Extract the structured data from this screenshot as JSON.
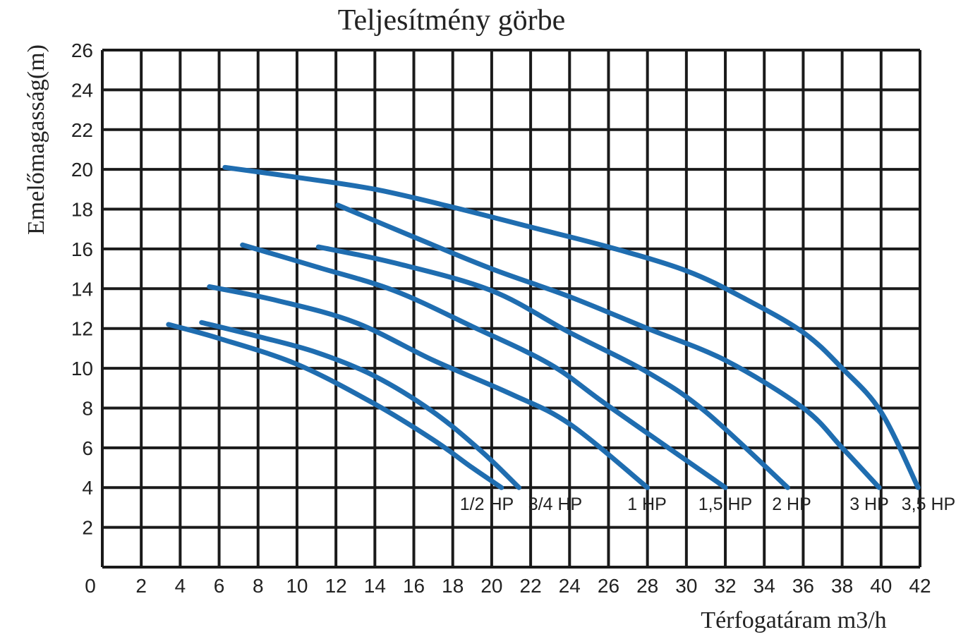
{
  "chart_data": {
    "type": "line",
    "title": "Teljesítmény görbe",
    "xlabel": "Térfogatáram m3/h",
    "ylabel": "Emelőmagasság(m)",
    "xlim": [
      0,
      42
    ],
    "ylim": [
      0,
      26
    ],
    "x_ticks": [
      "0",
      "2",
      "4",
      "6",
      "8",
      "10",
      "12",
      "14",
      "16",
      "18",
      "20",
      "22",
      "24",
      "26",
      "28",
      "30",
      "32",
      "34",
      "36",
      "38",
      "40",
      "42"
    ],
    "y_ticks": [
      "2",
      "4",
      "6",
      "8",
      "10",
      "12",
      "14",
      "16",
      "18",
      "20",
      "22",
      "24",
      "26"
    ],
    "grid": true,
    "line_color": "#1f6db0",
    "series": [
      {
        "name": "1/2 HP",
        "points": [
          [
            3.4,
            12.2
          ],
          [
            6,
            11.5
          ],
          [
            10,
            10.2
          ],
          [
            14,
            8.2
          ],
          [
            17,
            6.4
          ],
          [
            19,
            5
          ],
          [
            20.5,
            4
          ]
        ]
      },
      {
        "name": "3/4 HP",
        "points": [
          [
            5.1,
            12.3
          ],
          [
            8,
            11.6
          ],
          [
            11,
            10.8
          ],
          [
            14,
            9.6
          ],
          [
            17,
            7.8
          ],
          [
            19.5,
            5.8
          ],
          [
            21.4,
            4
          ]
        ]
      },
      {
        "name": "1 HP",
        "points": [
          [
            5.5,
            14.1
          ],
          [
            9,
            13.4
          ],
          [
            13,
            12.3
          ],
          [
            17,
            10.4
          ],
          [
            21,
            8.7
          ],
          [
            24,
            7.2
          ],
          [
            28,
            4
          ]
        ]
      },
      {
        "name": "1,5 HP",
        "points": [
          [
            7.2,
            16.2
          ],
          [
            11,
            15.1
          ],
          [
            15,
            13.9
          ],
          [
            19,
            12.1
          ],
          [
            23,
            10.2
          ],
          [
            26,
            8.1
          ],
          [
            32,
            4
          ]
        ]
      },
      {
        "name": "2 HP",
        "points": [
          [
            11.1,
            16.1
          ],
          [
            15,
            15.3
          ],
          [
            20,
            13.9
          ],
          [
            24,
            11.8
          ],
          [
            28,
            9.8
          ],
          [
            31,
            7.8
          ],
          [
            35.2,
            4
          ]
        ]
      },
      {
        "name": "3 HP",
        "points": [
          [
            12.1,
            18.2
          ],
          [
            16,
            16.6
          ],
          [
            20,
            15
          ],
          [
            24,
            13.6
          ],
          [
            28,
            12
          ],
          [
            32,
            10.4
          ],
          [
            36,
            8
          ],
          [
            38,
            6
          ],
          [
            39.9,
            4
          ]
        ]
      },
      {
        "name": "3,5 HP",
        "points": [
          [
            6.3,
            20.1
          ],
          [
            10,
            19.6
          ],
          [
            14,
            19
          ],
          [
            18,
            18.1
          ],
          [
            22,
            17.1
          ],
          [
            26,
            16.1
          ],
          [
            30,
            14.9
          ],
          [
            33,
            13.5
          ],
          [
            36,
            11.8
          ],
          [
            38,
            10
          ],
          [
            40,
            7.8
          ],
          [
            41.9,
            4
          ]
        ]
      }
    ]
  }
}
